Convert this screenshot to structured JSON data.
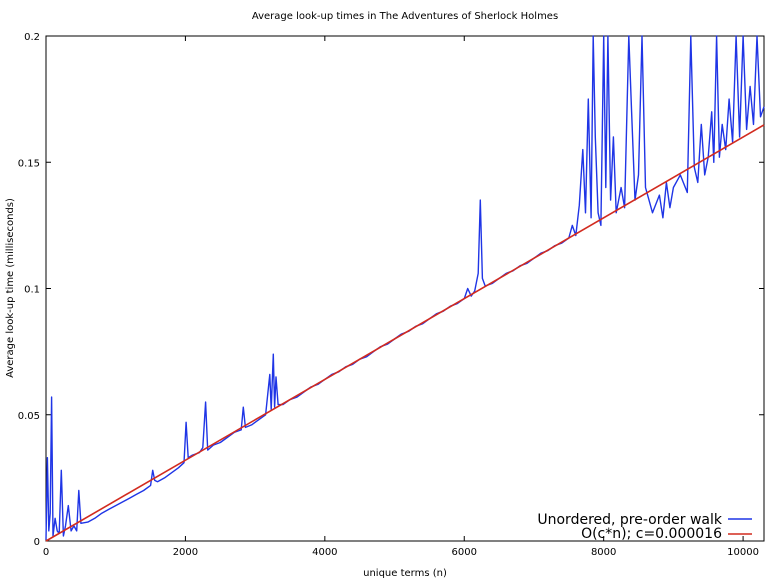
{
  "chart_data": {
    "type": "line",
    "title": "Average look-up times in The Adventures of Sherlock Holmes",
    "xlabel": "unique terms (n)",
    "ylabel": "Average look-up time (milliseconds)",
    "xlim": [
      0,
      10300
    ],
    "ylim": [
      0,
      0.2
    ],
    "x_ticks": [
      0,
      2000,
      4000,
      6000,
      8000,
      10000
    ],
    "x_tick_labels": [
      "0",
      "2000",
      "4000",
      "6000",
      "8000",
      "10000"
    ],
    "y_ticks": [
      0,
      0.05,
      0.1,
      0.15,
      0.2
    ],
    "y_tick_labels": [
      "0",
      "0.05",
      "0.1",
      "0.15",
      "0.2"
    ],
    "grid": false,
    "legend_position": "bottom-right",
    "series": [
      {
        "name": "Unordered, pre-order walk",
        "color": "#1f35e6",
        "points": [
          [
            0,
            0.0005
          ],
          [
            20,
            0.033
          ],
          [
            40,
            0.004
          ],
          [
            60,
            0.011
          ],
          [
            80,
            0.057
          ],
          [
            100,
            0.002
          ],
          [
            130,
            0.009
          ],
          [
            160,
            0.004
          ],
          [
            190,
            0.003
          ],
          [
            220,
            0.028
          ],
          [
            250,
            0.002
          ],
          [
            280,
            0.006
          ],
          [
            320,
            0.014
          ],
          [
            360,
            0.004
          ],
          [
            400,
            0.006
          ],
          [
            440,
            0.004
          ],
          [
            470,
            0.02
          ],
          [
            500,
            0.007
          ],
          [
            600,
            0.0075
          ],
          [
            700,
            0.009
          ],
          [
            800,
            0.011
          ],
          [
            900,
            0.0125
          ],
          [
            1000,
            0.014
          ],
          [
            1100,
            0.0155
          ],
          [
            1200,
            0.017
          ],
          [
            1300,
            0.0185
          ],
          [
            1400,
            0.02
          ],
          [
            1500,
            0.022
          ],
          [
            1530,
            0.028
          ],
          [
            1560,
            0.024
          ],
          [
            1600,
            0.0235
          ],
          [
            1700,
            0.025
          ],
          [
            1800,
            0.027
          ],
          [
            1900,
            0.029
          ],
          [
            1980,
            0.031
          ],
          [
            2010,
            0.047
          ],
          [
            2040,
            0.033
          ],
          [
            2100,
            0.034
          ],
          [
            2200,
            0.035
          ],
          [
            2250,
            0.037
          ],
          [
            2290,
            0.055
          ],
          [
            2320,
            0.036
          ],
          [
            2400,
            0.038
          ],
          [
            2500,
            0.039
          ],
          [
            2600,
            0.041
          ],
          [
            2700,
            0.043
          ],
          [
            2800,
            0.044
          ],
          [
            2830,
            0.053
          ],
          [
            2860,
            0.045
          ],
          [
            2950,
            0.046
          ],
          [
            3050,
            0.048
          ],
          [
            3150,
            0.05
          ],
          [
            3210,
            0.066
          ],
          [
            3230,
            0.052
          ],
          [
            3260,
            0.074
          ],
          [
            3280,
            0.053
          ],
          [
            3300,
            0.065
          ],
          [
            3330,
            0.054
          ],
          [
            3400,
            0.054
          ],
          [
            3500,
            0.056
          ],
          [
            3600,
            0.057
          ],
          [
            3700,
            0.059
          ],
          [
            3800,
            0.061
          ],
          [
            3900,
            0.062
          ],
          [
            4000,
            0.064
          ],
          [
            4100,
            0.066
          ],
          [
            4200,
            0.067
          ],
          [
            4300,
            0.069
          ],
          [
            4400,
            0.07
          ],
          [
            4500,
            0.072
          ],
          [
            4600,
            0.073
          ],
          [
            4700,
            0.075
          ],
          [
            4800,
            0.077
          ],
          [
            4900,
            0.078
          ],
          [
            5000,
            0.08
          ],
          [
            5100,
            0.082
          ],
          [
            5200,
            0.083
          ],
          [
            5300,
            0.085
          ],
          [
            5400,
            0.086
          ],
          [
            5500,
            0.088
          ],
          [
            5600,
            0.09
          ],
          [
            5700,
            0.091
          ],
          [
            5800,
            0.093
          ],
          [
            5900,
            0.094
          ],
          [
            6000,
            0.096
          ],
          [
            6050,
            0.1
          ],
          [
            6100,
            0.097
          ],
          [
            6150,
            0.099
          ],
          [
            6200,
            0.106
          ],
          [
            6230,
            0.135
          ],
          [
            6260,
            0.104
          ],
          [
            6300,
            0.101
          ],
          [
            6400,
            0.102
          ],
          [
            6500,
            0.104
          ],
          [
            6600,
            0.106
          ],
          [
            6700,
            0.107
          ],
          [
            6800,
            0.109
          ],
          [
            6900,
            0.11
          ],
          [
            7000,
            0.112
          ],
          [
            7100,
            0.114
          ],
          [
            7200,
            0.115
          ],
          [
            7300,
            0.117
          ],
          [
            7400,
            0.118
          ],
          [
            7500,
            0.12
          ],
          [
            7550,
            0.125
          ],
          [
            7600,
            0.121
          ],
          [
            7650,
            0.133
          ],
          [
            7700,
            0.155
          ],
          [
            7740,
            0.13
          ],
          [
            7780,
            0.175
          ],
          [
            7820,
            0.128
          ],
          [
            7850,
            0.2
          ],
          [
            7880,
            0.16
          ],
          [
            7920,
            0.13
          ],
          [
            7960,
            0.125
          ],
          [
            8000,
            0.2
          ],
          [
            8030,
            0.14
          ],
          [
            8060,
            0.2
          ],
          [
            8100,
            0.135
          ],
          [
            8140,
            0.16
          ],
          [
            8180,
            0.13
          ],
          [
            8250,
            0.14
          ],
          [
            8300,
            0.132
          ],
          [
            8360,
            0.2
          ],
          [
            8400,
            0.17
          ],
          [
            8450,
            0.135
          ],
          [
            8500,
            0.145
          ],
          [
            8550,
            0.2
          ],
          [
            8600,
            0.14
          ],
          [
            8650,
            0.135
          ],
          [
            8700,
            0.13
          ],
          [
            8800,
            0.137
          ],
          [
            8850,
            0.128
          ],
          [
            8900,
            0.142
          ],
          [
            8950,
            0.132
          ],
          [
            9000,
            0.14
          ],
          [
            9100,
            0.145
          ],
          [
            9200,
            0.138
          ],
          [
            9250,
            0.2
          ],
          [
            9300,
            0.148
          ],
          [
            9350,
            0.142
          ],
          [
            9400,
            0.165
          ],
          [
            9450,
            0.145
          ],
          [
            9500,
            0.152
          ],
          [
            9550,
            0.17
          ],
          [
            9580,
            0.15
          ],
          [
            9620,
            0.2
          ],
          [
            9660,
            0.152
          ],
          [
            9700,
            0.165
          ],
          [
            9750,
            0.155
          ],
          [
            9800,
            0.175
          ],
          [
            9850,
            0.158
          ],
          [
            9900,
            0.2
          ],
          [
            9950,
            0.16
          ],
          [
            10000,
            0.2
          ],
          [
            10050,
            0.163
          ],
          [
            10100,
            0.18
          ],
          [
            10150,
            0.165
          ],
          [
            10200,
            0.2
          ],
          [
            10250,
            0.168
          ],
          [
            10300,
            0.172
          ]
        ]
      },
      {
        "name": "O(c*n); c=0.000016",
        "color": "#d22b1f",
        "points": [
          [
            0,
            0
          ],
          [
            10300,
            0.1648
          ]
        ]
      }
    ]
  }
}
